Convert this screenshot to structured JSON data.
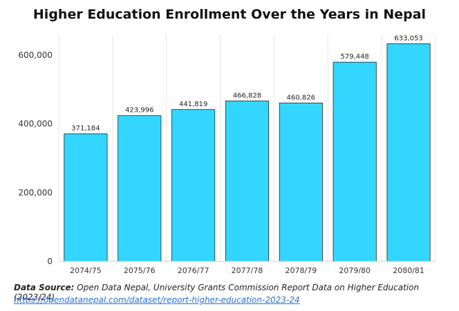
{
  "chart_data": {
    "type": "bar",
    "title": "Higher Education Enrollment Over the Years in Nepal",
    "categories": [
      "2074/75",
      "2075/76",
      "2076/77",
      "2077/78",
      "2078/79",
      "2079/80",
      "2080/81"
    ],
    "values": [
      371184,
      423996,
      441819,
      466828,
      460826,
      579448,
      633053
    ],
    "data_labels": [
      "371,184",
      "423,996",
      "441,819",
      "466,828",
      "460,826",
      "579,448",
      "633,053"
    ],
    "yticks": [
      0,
      200000,
      400000,
      600000
    ],
    "ytick_labels": [
      "0",
      "200,000",
      "400,000",
      "600,000"
    ],
    "ylim": [
      0,
      660000
    ],
    "grid": "vertical",
    "bar_color": "#33d6ff",
    "bar_edge_color": "#222222",
    "xlabel": "",
    "ylabel": ""
  },
  "source": {
    "label": "Data Source:",
    "text": " Open Data Nepal, University Grants Commission Report Data on Higher Education (2023/24)",
    "url": "https://opendatanepal.com/dataset/report-higher-education-2023-24"
  }
}
